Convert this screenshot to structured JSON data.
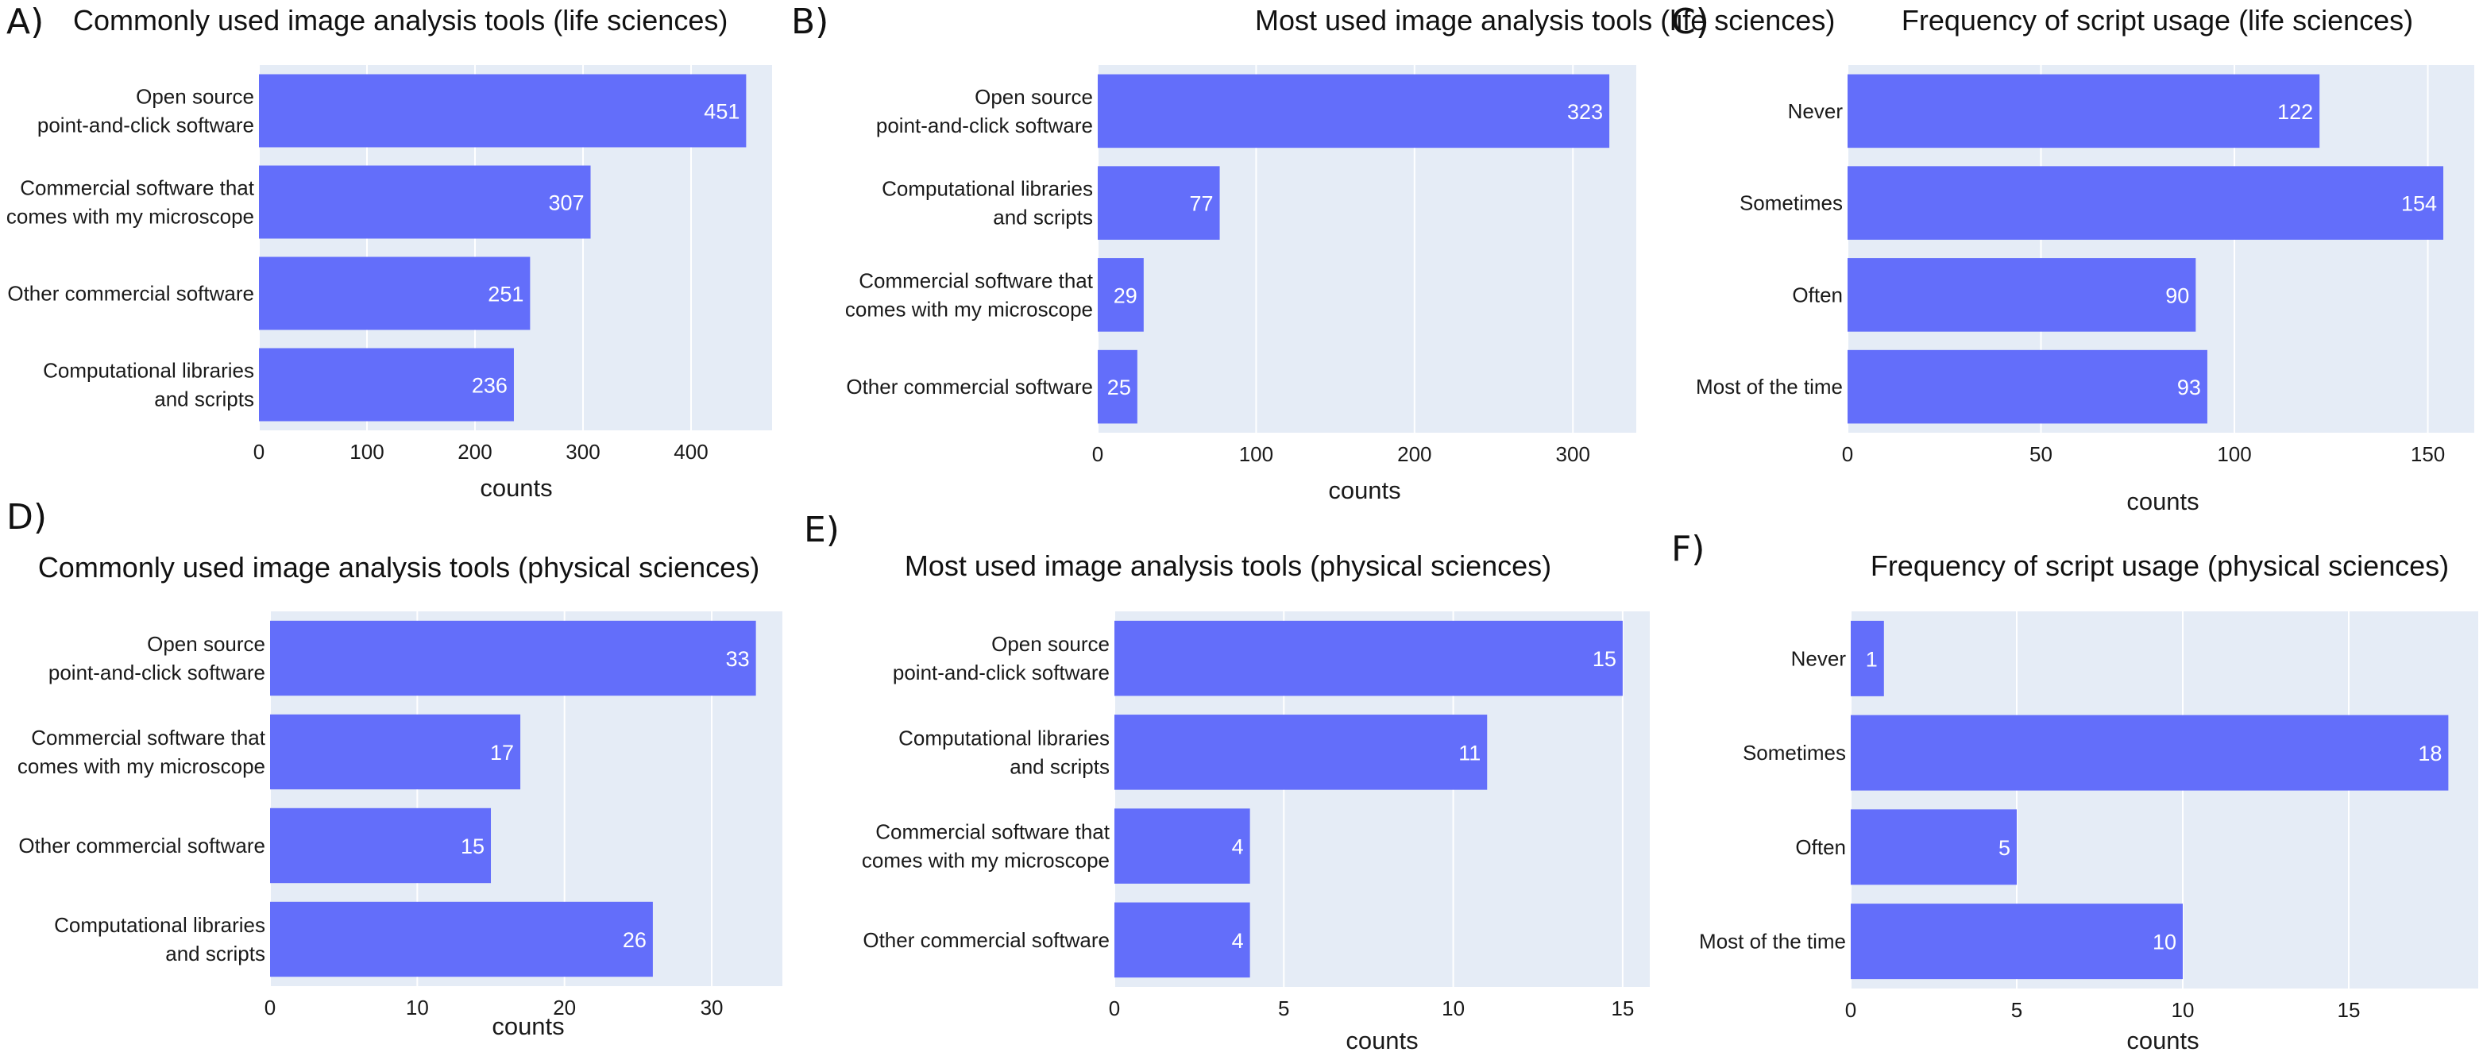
{
  "colors": {
    "bar": "#636efa",
    "plot_bg": "#e5ecf6",
    "grid": "#ffffff"
  },
  "chart_data": [
    {
      "type": "bar",
      "orientation": "horizontal",
      "panel_label": "A)",
      "title": "Commonly used image analysis tools (life sciences)",
      "xlabel": "counts",
      "categories": [
        "Open source\npoint-and-click software",
        "Commercial software that\ncomes with my microscope",
        "Other commercial software",
        "Computational libraries\nand scripts"
      ],
      "values": [
        451,
        307,
        251,
        236
      ],
      "xlim": [
        0,
        475
      ],
      "xticks": [
        0,
        100,
        200,
        300,
        400
      ],
      "grid": true
    },
    {
      "type": "bar",
      "orientation": "horizontal",
      "panel_label": "B)",
      "title": "Most used image analysis tools (life sciences)",
      "xlabel": "counts",
      "categories": [
        "Open source\npoint-and-click software",
        "Computational libraries\nand scripts",
        "Commercial software that\ncomes with my microscope",
        "Other commercial software"
      ],
      "values": [
        323,
        77,
        29,
        25
      ],
      "xlim": [
        0,
        340
      ],
      "xticks": [
        0,
        100,
        200,
        300
      ],
      "grid": true
    },
    {
      "type": "bar",
      "orientation": "horizontal",
      "panel_label": "C)",
      "title": "Frequency of script usage (life sciences)",
      "xlabel": "counts",
      "categories": [
        "Never",
        "Sometimes",
        "Often",
        "Most of the time"
      ],
      "values": [
        122,
        154,
        90,
        93
      ],
      "xlim": [
        0,
        162
      ],
      "xticks": [
        0,
        50,
        100,
        150
      ],
      "grid": true
    },
    {
      "type": "bar",
      "orientation": "horizontal",
      "panel_label": "D)",
      "title": "Commonly used image analysis tools (physical sciences)",
      "xlabel": "counts",
      "categories": [
        "Open source\npoint-and-click software",
        "Commercial software that\ncomes with my microscope",
        "Other commercial software",
        "Computational libraries\nand scripts"
      ],
      "values": [
        33,
        17,
        15,
        26
      ],
      "xlim": [
        0,
        34.8
      ],
      "xticks": [
        0,
        10,
        20,
        30
      ],
      "grid": true
    },
    {
      "type": "bar",
      "orientation": "horizontal",
      "panel_label": "E)",
      "title": "Most used image analysis tools (physical sciences)",
      "xlabel": "counts",
      "categories": [
        "Open source\npoint-and-click software",
        "Computational libraries\nand scripts",
        "Commercial software that\ncomes with my microscope",
        "Other commercial software"
      ],
      "values": [
        15,
        11,
        4,
        4
      ],
      "xlim": [
        0,
        15.8
      ],
      "xticks": [
        0,
        5,
        10,
        15
      ],
      "grid": true
    },
    {
      "type": "bar",
      "orientation": "horizontal",
      "panel_label": "F)",
      "title": "Frequency of script usage (physical sciences)",
      "xlabel": "counts",
      "categories": [
        "Never",
        "Sometimes",
        "Often",
        "Most of the time"
      ],
      "values": [
        1,
        18,
        5,
        10
      ],
      "xlim": [
        0,
        18.9
      ],
      "xticks": [
        0,
        5,
        10,
        15
      ],
      "grid": true
    }
  ]
}
